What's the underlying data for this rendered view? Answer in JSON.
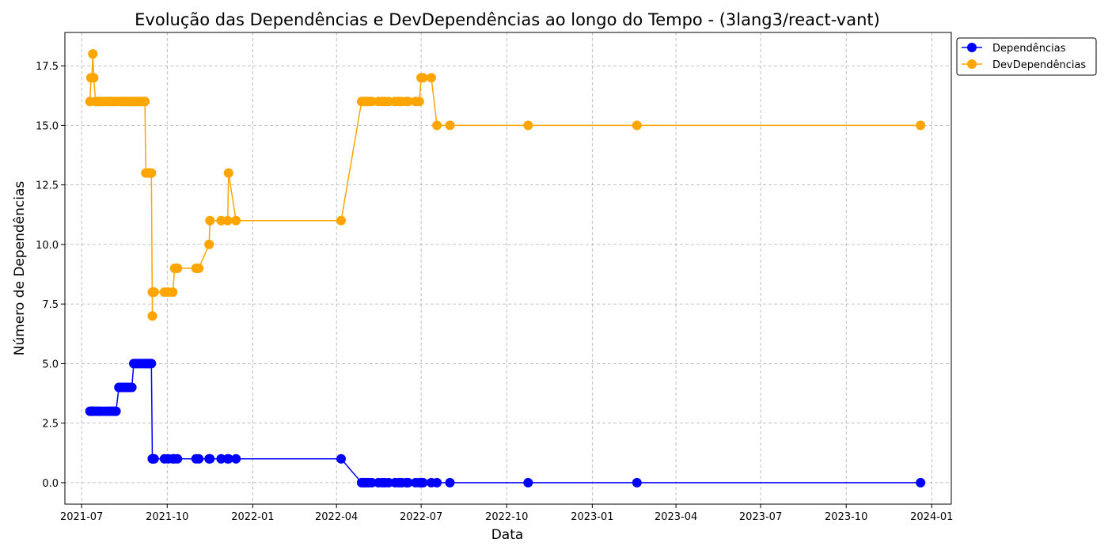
{
  "chart_data": {
    "type": "line",
    "title": "Evolução das Dependências e DevDependências ao longo do Tempo - (3lang3/react-vant)",
    "xlabel": "Data",
    "ylabel": "Número de Dependências",
    "ylim": [
      -0.9,
      18.9
    ],
    "xlim": [
      "2021-06-13",
      "2024-01-22"
    ],
    "grid": true,
    "legend_position": "top-right-outside",
    "x_ticks": [
      "2021-07",
      "2021-10",
      "2022-01",
      "2022-04",
      "2022-07",
      "2022-10",
      "2023-01",
      "2023-04",
      "2023-07",
      "2023-10",
      "2024-01"
    ],
    "x_tick_dates": [
      "2021-07-01",
      "2021-10-01",
      "2022-01-01",
      "2022-04-01",
      "2022-07-01",
      "2022-10-01",
      "2023-01-01",
      "2023-04-01",
      "2023-07-01",
      "2023-10-01",
      "2024-01-01"
    ],
    "y_ticks": [
      "0.0",
      "2.5",
      "5.0",
      "7.5",
      "10.0",
      "12.5",
      "15.0",
      "17.5"
    ],
    "y_tick_values": [
      0,
      2.5,
      5,
      7.5,
      10,
      12.5,
      15,
      17.5
    ],
    "series": [
      {
        "name": "Dependências",
        "color": "#0000ff",
        "x": [
          "2021-07-10",
          "2021-07-11",
          "2021-07-12",
          "2021-07-13",
          "2021-07-14",
          "2021-07-16",
          "2021-07-18",
          "2021-07-20",
          "2021-07-22",
          "2021-07-25",
          "2021-07-28",
          "2021-07-30",
          "2021-08-01",
          "2021-08-03",
          "2021-08-05",
          "2021-08-07",
          "2021-08-10",
          "2021-08-12",
          "2021-08-14",
          "2021-08-16",
          "2021-08-18",
          "2021-08-20",
          "2021-08-22",
          "2021-08-24",
          "2021-08-26",
          "2021-08-28",
          "2021-08-30",
          "2021-09-01",
          "2021-09-03",
          "2021-09-05",
          "2021-09-07",
          "2021-09-08",
          "2021-09-10",
          "2021-09-11",
          "2021-09-13",
          "2021-09-14",
          "2021-09-15",
          "2021-09-15",
          "2021-09-16",
          "2021-09-17",
          "2021-09-28",
          "2021-10-02",
          "2021-10-07",
          "2021-10-09",
          "2021-10-12",
          "2021-11-01",
          "2021-11-04",
          "2021-11-15",
          "2021-11-16",
          "2021-11-28",
          "2021-12-05",
          "2021-12-06",
          "2021-12-14",
          "2022-04-06",
          "2022-04-28",
          "2022-04-30",
          "2022-05-02",
          "2022-05-04",
          "2022-05-06",
          "2022-05-09",
          "2022-05-16",
          "2022-05-20",
          "2022-05-23",
          "2022-05-27",
          "2022-06-03",
          "2022-06-07",
          "2022-06-10",
          "2022-06-15",
          "2022-06-17",
          "2022-06-25",
          "2022-06-29",
          "2022-07-01",
          "2022-07-03",
          "2022-07-12",
          "2022-07-18",
          "2022-08-01",
          "2022-10-24",
          "2023-02-18",
          "2023-12-20"
        ],
        "values": [
          3,
          3,
          3,
          3,
          3,
          3,
          3,
          3,
          3,
          3,
          3,
          3,
          3,
          3,
          3,
          3,
          4,
          4,
          4,
          4,
          4,
          4,
          4,
          4,
          5,
          5,
          5,
          5,
          5,
          5,
          5,
          5,
          5,
          5,
          5,
          5,
          1,
          1,
          1,
          1,
          1,
          1,
          1,
          1,
          1,
          1,
          1,
          1,
          1,
          1,
          1,
          1,
          1,
          1,
          0,
          0,
          0,
          0,
          0,
          0,
          0,
          0,
          0,
          0,
          0,
          0,
          0,
          0,
          0,
          0,
          0,
          0,
          0,
          0,
          0,
          0,
          0,
          0,
          0
        ]
      },
      {
        "name": "DevDependências",
        "color": "#ffa500",
        "x": [
          "2021-07-10",
          "2021-07-11",
          "2021-07-12",
          "2021-07-13",
          "2021-07-14",
          "2021-07-16",
          "2021-07-18",
          "2021-07-20",
          "2021-07-22",
          "2021-07-25",
          "2021-07-28",
          "2021-07-30",
          "2021-08-01",
          "2021-08-03",
          "2021-08-05",
          "2021-08-07",
          "2021-08-10",
          "2021-08-12",
          "2021-08-14",
          "2021-08-16",
          "2021-08-18",
          "2021-08-20",
          "2021-08-22",
          "2021-08-24",
          "2021-08-26",
          "2021-08-28",
          "2021-08-30",
          "2021-09-01",
          "2021-09-03",
          "2021-09-05",
          "2021-09-07",
          "2021-09-08",
          "2021-09-10",
          "2021-09-11",
          "2021-09-13",
          "2021-09-14",
          "2021-09-15",
          "2021-09-15",
          "2021-09-16",
          "2021-09-17",
          "2021-09-28",
          "2021-10-02",
          "2021-10-07",
          "2021-10-09",
          "2021-10-12",
          "2021-11-01",
          "2021-11-04",
          "2021-11-15",
          "2021-11-16",
          "2021-11-28",
          "2021-12-05",
          "2021-12-06",
          "2021-12-14",
          "2022-04-06",
          "2022-04-28",
          "2022-04-30",
          "2022-05-02",
          "2022-05-04",
          "2022-05-06",
          "2022-05-09",
          "2022-05-16",
          "2022-05-20",
          "2022-05-23",
          "2022-05-27",
          "2022-06-03",
          "2022-06-07",
          "2022-06-10",
          "2022-06-15",
          "2022-06-17",
          "2022-06-25",
          "2022-06-29",
          "2022-07-01",
          "2022-07-03",
          "2022-07-12",
          "2022-07-18",
          "2022-08-01",
          "2022-10-24",
          "2023-02-18",
          "2023-12-20"
        ],
        "values": [
          16,
          17,
          17,
          18,
          17,
          16,
          16,
          16,
          16,
          16,
          16,
          16,
          16,
          16,
          16,
          16,
          16,
          16,
          16,
          16,
          16,
          16,
          16,
          16,
          16,
          16,
          16,
          16,
          16,
          16,
          16,
          13,
          13,
          13,
          13,
          13,
          7,
          8,
          8,
          8,
          8,
          8,
          8,
          9,
          9,
          9,
          9,
          10,
          11,
          11,
          11,
          13,
          11,
          11,
          16,
          16,
          16,
          16,
          16,
          16,
          16,
          16,
          16,
          16,
          16,
          16,
          16,
          16,
          16,
          16,
          16,
          17,
          17,
          17,
          15,
          15,
          15,
          15,
          15
        ]
      }
    ]
  }
}
